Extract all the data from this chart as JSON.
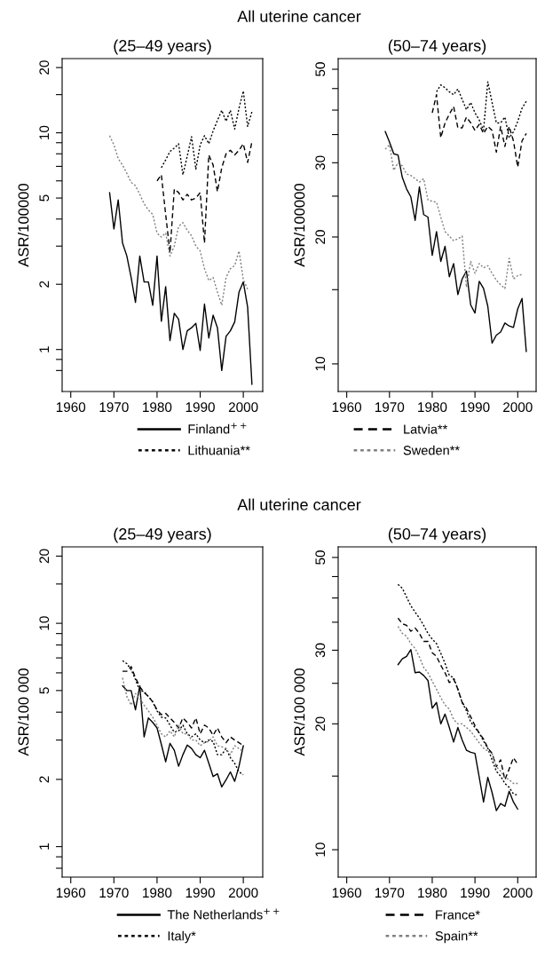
{
  "chart_data": [
    {
      "type": "line",
      "title": "All uterine cancer",
      "subtitle": "(25–49 years)",
      "ylabel": "ASR/100000",
      "log": "y",
      "legend": "bottom",
      "xlim": [
        1958,
        2004.5
      ],
      "xticks": [
        1960,
        1970,
        1980,
        1990,
        2000
      ],
      "ylim": [
        0.64,
        22
      ],
      "yticks": [
        {
          "value": 0.8,
          "label": null
        },
        {
          "value": 0.9,
          "label": null
        },
        1,
        2,
        {
          "value": 3,
          "label": null
        },
        {
          "value": 4,
          "label": null
        },
        5,
        {
          "value": 6,
          "label": null
        },
        {
          "value": 7,
          "label": null
        },
        {
          "value": 8,
          "label": null
        },
        {
          "value": 9,
          "label": null
        },
        10,
        {
          "value": 15,
          "label": null
        },
        20
      ],
      "series": [
        {
          "name": "Finland$^{++}$",
          "color": "#000000",
          "line_style": "solid",
          "x": [
            1969,
            1970,
            1971,
            1972,
            1973,
            1974,
            1975,
            1976,
            1977,
            1978,
            1979,
            1980,
            1981,
            1982,
            1983,
            1984,
            1985,
            1986,
            1987,
            1988,
            1989,
            1990,
            1991,
            1992,
            1993,
            1994,
            1995,
            1996,
            1997,
            1998,
            1999,
            2000,
            2001,
            2002
          ],
          "values": [
            5.3,
            3.6,
            4.9,
            3.1,
            2.7,
            2.15,
            1.65,
            2.7,
            2.05,
            2.05,
            1.6,
            2.7,
            1.35,
            1.95,
            1.1,
            1.47,
            1.38,
            1.0,
            1.22,
            1.26,
            1.32,
            0.99,
            1.62,
            1.13,
            1.44,
            1.26,
            0.8,
            1.15,
            1.22,
            1.34,
            1.84,
            2.05,
            1.57,
            0.69
          ]
        },
        {
          "name": "Latvia**",
          "color": "#000000",
          "line_style": "dashed",
          "x": [
            1980,
            1981,
            1982,
            1983,
            1984,
            1985,
            1986,
            1987,
            1988,
            1989,
            1990,
            1991,
            1992,
            1993,
            1994,
            1995,
            1996,
            1997,
            1998,
            1999,
            2000,
            2001,
            2002
          ],
          "values": [
            6.0,
            6.4,
            4.2,
            2.8,
            5.5,
            5.3,
            4.9,
            5.2,
            4.9,
            5.0,
            5.3,
            3.1,
            7.9,
            7.1,
            5.35,
            6.9,
            8.0,
            8.3,
            7.9,
            8.3,
            8.9,
            7.3,
            9.1
          ]
        },
        {
          "name": "Lithuania**",
          "color": "#000000",
          "line_style": "dotted",
          "x": [
            1981,
            1982,
            1983,
            1984,
            1985,
            1986,
            1987,
            1988,
            1989,
            1990,
            1991,
            1992,
            1993,
            1994,
            1995,
            1996,
            1997,
            1998,
            1999,
            2000,
            2001,
            2002
          ],
          "values": [
            6.9,
            7.5,
            8.2,
            8.5,
            8.9,
            6.4,
            7.8,
            9.6,
            6.8,
            8.8,
            9.7,
            8.9,
            10.2,
            11.4,
            12.7,
            11.3,
            12.7,
            10.4,
            13,
            15.6,
            10.7,
            12.5
          ]
        },
        {
          "name": "Sweden**",
          "color": "#808080",
          "line_style": "dotted",
          "x": [
            1969,
            1970,
            1971,
            1972,
            1973,
            1974,
            1975,
            1976,
            1977,
            1978,
            1979,
            1980,
            1981,
            1982,
            1983,
            1984,
            1985,
            1986,
            1987,
            1988,
            1989,
            1990,
            1991,
            1992,
            1993,
            1994,
            1995,
            1996,
            1997,
            1998,
            1999,
            2000,
            2001
          ],
          "values": [
            9.7,
            8.8,
            7.6,
            7.1,
            6.5,
            5.9,
            5.7,
            5.2,
            4.7,
            4.4,
            4.2,
            3.45,
            3.3,
            3.45,
            2.7,
            3.0,
            3.7,
            3.85,
            3.55,
            3.35,
            3.0,
            2.85,
            2.36,
            2.08,
            2.15,
            1.84,
            1.6,
            2.15,
            2.36,
            2.44,
            2.85,
            2.1,
            1.9
          ]
        }
      ]
    },
    {
      "type": "line",
      "subtitle": "(50–74 years)",
      "ylabel": "ASR/100000",
      "log": "y",
      "xlim": [
        1958,
        2004.3
      ],
      "xticks": [
        1960,
        1970,
        1980,
        1990,
        2000
      ],
      "ylim": [
        8.6,
        53
      ],
      "yticks": [
        10,
        {
          "value": 15,
          "label": null
        },
        20,
        {
          "value": 25,
          "label": null
        },
        30,
        {
          "value": 35,
          "label": null
        },
        {
          "value": 40,
          "label": null
        },
        {
          "value": 45,
          "label": null
        },
        50
      ],
      "series": [
        {
          "color": "#000000",
          "line_style": "solid",
          "x": [
            1969,
            1970,
            1971,
            1972,
            1973,
            1974,
            1975,
            1976,
            1977,
            1978,
            1979,
            1980,
            1981,
            1982,
            1983,
            1984,
            1985,
            1986,
            1987,
            1988,
            1989,
            1990,
            1991,
            1992,
            1993,
            1994,
            1995,
            1996,
            1997,
            1998,
            1999,
            2000,
            2001,
            2002
          ],
          "values": [
            35.6,
            33.6,
            31.5,
            31.3,
            27.7,
            26,
            24.9,
            21.9,
            26.3,
            22.6,
            22.3,
            18.1,
            20.6,
            17.5,
            19,
            16.1,
            17.3,
            14.6,
            15.9,
            16.6,
            13.8,
            13.2,
            15.7,
            15.1,
            13.7,
            11.2,
            11.7,
            11.9,
            12.5,
            12.3,
            12.2,
            13.5,
            14.3,
            10.7
          ]
        },
        {
          "color": "#000000",
          "line_style": "dashed",
          "x": [
            1980,
            1981,
            1982,
            1983,
            1984,
            1985,
            1986,
            1987,
            1988,
            1989,
            1990,
            1991,
            1992,
            1993,
            1994,
            1995,
            1996,
            1997,
            1998,
            1999,
            2000,
            2001,
            2002
          ],
          "values": [
            39.4,
            43.5,
            34.4,
            37.3,
            39.1,
            40.8,
            36.3,
            36.3,
            38.5,
            37.3,
            35.8,
            37,
            35.2,
            36.6,
            35.8,
            31.8,
            36.6,
            32.8,
            36.6,
            33.8,
            29.3,
            33.8,
            35.2
          ]
        },
        {
          "color": "#000000",
          "line_style": "dotted",
          "x": [
            1981,
            1982,
            1983,
            1984,
            1985,
            1986,
            1987,
            1988,
            1989,
            1990,
            1991,
            1992,
            1993,
            1994,
            1995,
            1996,
            1997,
            1998,
            1999,
            2000,
            2001,
            2002
          ],
          "values": [
            44.2,
            45.9,
            45.2,
            44.2,
            43.5,
            44.9,
            42.4,
            40.1,
            41.7,
            39.4,
            37.9,
            35.8,
            46.7,
            41.7,
            37.3,
            37.3,
            38.5,
            34.4,
            35.5,
            37.6,
            40.4,
            42
          ]
        },
        {
          "color": "#808080",
          "line_style": "dotted",
          "x": [
            1969,
            1970,
            1971,
            1972,
            1973,
            1974,
            1975,
            1976,
            1977,
            1978,
            1979,
            1980,
            1981,
            1982,
            1983,
            1984,
            1985,
            1986,
            1987,
            1988,
            1989,
            1990,
            1991,
            1992,
            1993,
            1994,
            1995,
            1996,
            1997,
            1998,
            1999,
            2000,
            2001
          ],
          "values": [
            32.3,
            33.1,
            28.8,
            30,
            29.5,
            28.2,
            28,
            27.5,
            27,
            27.5,
            24.5,
            24.3,
            24.2,
            22.3,
            20.6,
            20.1,
            19.6,
            19.8,
            20.1,
            15.2,
            17.5,
            16.4,
            17.3,
            16.9,
            17.1,
            16.4,
            15.8,
            15.4,
            15.1,
            17.8,
            15.9,
            16.2,
            16.3
          ]
        }
      ]
    },
    {
      "type": "line",
      "title": "All uterine cancer",
      "subtitle": "(25–49 years)",
      "ylabel": "ASR/100 000",
      "log": "y",
      "legend": "bottom",
      "xlim": [
        1958,
        2004.5
      ],
      "xticks": [
        1960,
        1970,
        1980,
        1990,
        2000
      ],
      "x": [
        1972,
        1973,
        1974,
        1975,
        1976,
        1977,
        1978,
        1979,
        1980,
        1981,
        1982,
        1983,
        1984,
        1985,
        1986,
        1987,
        1988,
        1989,
        1990,
        1991,
        1992,
        1993,
        1994,
        1995,
        1996,
        1997,
        1998,
        1999,
        2000
      ],
      "ylim": [
        0.73,
        22
      ],
      "yticks": [
        {
          "value": 0.8,
          "label": null
        },
        {
          "value": 0.9,
          "label": null
        },
        1,
        2,
        {
          "value": 3,
          "label": null
        },
        {
          "value": 4,
          "label": null
        },
        5,
        {
          "value": 6,
          "label": null
        },
        {
          "value": 7,
          "label": null
        },
        {
          "value": 8,
          "label": null
        },
        {
          "value": 9,
          "label": null
        },
        10,
        {
          "value": 15,
          "label": null
        },
        20
      ],
      "series": [
        {
          "name": "The Netherlands$^{++}$",
          "color": "#000000",
          "line_style": "solid",
          "values": [
            5.25,
            5.0,
            5.0,
            4.1,
            5.25,
            3.1,
            3.77,
            3.6,
            3.4,
            2.87,
            2.4,
            2.9,
            2.7,
            2.29,
            2.58,
            2.85,
            2.75,
            2.58,
            2.5,
            2.7,
            2.36,
            2.06,
            2.12,
            1.85,
            1.99,
            2.16,
            1.96,
            2.29,
            2.83
          ]
        },
        {
          "name": "France*",
          "color": "#000000",
          "line_style": "dashed",
          "values": [
            6.1,
            6.1,
            6.4,
            5.7,
            5.2,
            4.9,
            4.7,
            4.45,
            4.1,
            3.9,
            3.95,
            3.77,
            3.6,
            3.4,
            3.77,
            3.6,
            3.4,
            3.77,
            3.2,
            3.5,
            3.4,
            3.15,
            3.4,
            3.1,
            2.92,
            3.1,
            3.0,
            2.92,
            2.83
          ]
        },
        {
          "name": "Italy*",
          "color": "#000000",
          "line_style": "dotted",
          "values": [
            6.8,
            6.6,
            6.2,
            5.6,
            5.0,
            4.95,
            4.7,
            4.45,
            4.05,
            3.8,
            3.77,
            3.5,
            3.25,
            3.3,
            3.5,
            3.2,
            3.1,
            3.2,
            3.0,
            2.92,
            3.0,
            2.96,
            2.58,
            2.58,
            2.75,
            2.5,
            2.36,
            2.16,
            2.1
          ]
        },
        {
          "name": "Spain**",
          "color": "#808080",
          "line_style": "dotted",
          "values": [
            5.7,
            4.7,
            4.3,
            4.85,
            4.6,
            4.3,
            4.05,
            3.8,
            3.5,
            3.2,
            3.1,
            3.3,
            3.1,
            3.5,
            3.2,
            3.2,
            3.0,
            3.0,
            2.83,
            2.92,
            2.96,
            3.1,
            2.83,
            2.8,
            2.75,
            2.58,
            2.83,
            2.75,
            2.66
          ]
        }
      ]
    },
    {
      "type": "line",
      "subtitle": "(50–74 years)",
      "ylabel": "ASR/100 000",
      "log": "y",
      "xlim": [
        1958,
        2004.3
      ],
      "xticks": [
        1960,
        1970,
        1980,
        1990,
        2000
      ],
      "x": [
        1972,
        1973,
        1974,
        1975,
        1976,
        1977,
        1978,
        1979,
        1980,
        1981,
        1982,
        1983,
        1984,
        1985,
        1986,
        1987,
        1988,
        1989,
        1990,
        1991,
        1992,
        1993,
        1994,
        1995,
        1996,
        1997,
        1998,
        1999,
        2000
      ],
      "ylim": [
        8.6,
        53
      ],
      "yticks": [
        10,
        {
          "value": 15,
          "label": null
        },
        20,
        {
          "value": 25,
          "label": null
        },
        30,
        {
          "value": 35,
          "label": null
        },
        {
          "value": 40,
          "label": null
        },
        {
          "value": 45,
          "label": null
        },
        50
      ],
      "series": [
        {
          "color": "#000000",
          "line_style": "solid",
          "values": [
            27.7,
            28.6,
            29.0,
            30.1,
            26.5,
            26.6,
            26.1,
            25.4,
            21.8,
            22.5,
            20,
            21.1,
            19.6,
            18.1,
            19.6,
            18.3,
            17.3,
            17.1,
            17,
            14.9,
            13,
            14.9,
            13.7,
            12.4,
            12.9,
            12.7,
            13.8,
            13,
            12.5
          ]
        },
        {
          "color": "#000000",
          "line_style": "dashed",
          "values": [
            35.8,
            34.7,
            34.4,
            33.3,
            33.9,
            32.9,
            31.5,
            31.5,
            29.6,
            29,
            27.6,
            26.5,
            25.1,
            25.6,
            24.2,
            22.5,
            21.8,
            20.8,
            19.8,
            19.0,
            18.4,
            17.5,
            17,
            15.8,
            16.4,
            14.7,
            15.6,
            16.6,
            16.0
          ]
        },
        {
          "color": "#000000",
          "line_style": "dotted",
          "values": [
            43.1,
            42.2,
            40.2,
            38.3,
            37,
            35.8,
            34.4,
            32.9,
            31.9,
            31.1,
            29.5,
            27.9,
            26.1,
            25.8,
            24.2,
            22.5,
            21.5,
            20.2,
            19.6,
            19.0,
            18.2,
            17.5,
            16.4,
            15.4,
            15.0,
            14.4,
            14.1,
            13.6,
            13.5
          ]
        },
        {
          "color": "#808080",
          "line_style": "dotted",
          "values": [
            34.2,
            32.9,
            32.4,
            31.1,
            30.3,
            28.9,
            27.3,
            26.5,
            25.3,
            24.2,
            23.1,
            22.2,
            21.7,
            20.5,
            20,
            20,
            19.6,
            19.2,
            18.6,
            18,
            17.5,
            17.2,
            17,
            15.8,
            15.4,
            14.9,
            14.7,
            14.4,
            14.4
          ]
        }
      ]
    }
  ]
}
